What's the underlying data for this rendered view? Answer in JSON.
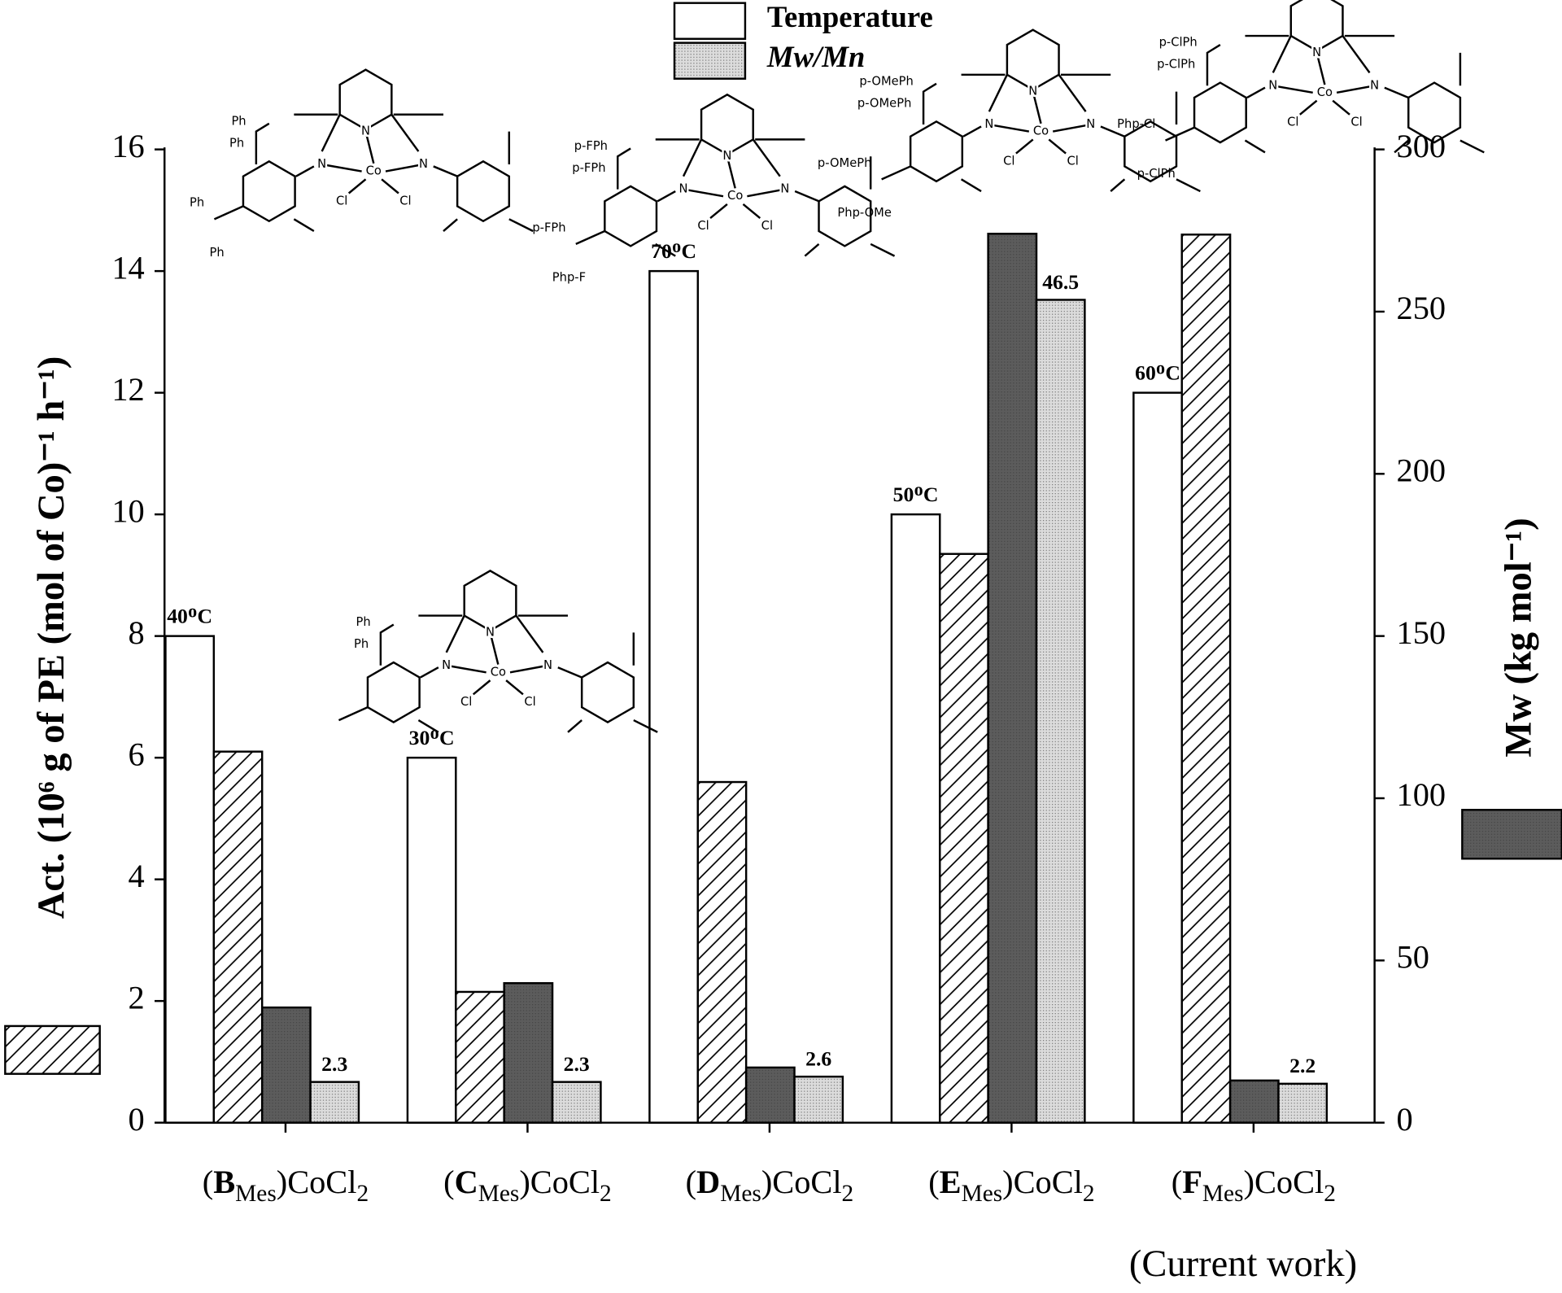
{
  "chart_data": {
    "type": "bar",
    "categories": [
      "(BMes)CoCl2",
      "(CMes)CoCl2",
      "(DMes)CoCl2",
      "(EMes)CoCl2",
      "(FMes)CoCl2"
    ],
    "ylabel": "Act. (10⁶ g of PE (mol of Co)⁻¹ h⁻¹)",
    "y2label": "Mw (kg mol⁻¹)",
    "ylim": [
      0,
      16
    ],
    "yticks": [
      0,
      2,
      4,
      6,
      8,
      10,
      12,
      14,
      16
    ],
    "y2lim": [
      0,
      300
    ],
    "y2ticks": [
      0,
      50,
      100,
      150,
      200,
      250,
      300
    ],
    "y3lim": [
      0,
      55
    ],
    "y4lim": [
      0,
      80
    ],
    "series": [
      {
        "name": "Temperature",
        "axis": "y4",
        "color": "#ffffff",
        "pattern": "none",
        "values": [
          40,
          30,
          70,
          50,
          60
        ],
        "value_labels": [
          "40ᴼC",
          "30ᴼC",
          "70ᴼC",
          "50ᴼC",
          "60ᴼC"
        ]
      },
      {
        "axis": "y",
        "color": "#ffffff",
        "pattern": "hatch",
        "values": [
          6.1,
          2.15,
          5.6,
          9.35,
          14.6
        ]
      },
      {
        "axis": "y2",
        "color": "#5c5c5c",
        "pattern": "dots",
        "values": [
          35.5,
          43,
          17,
          274,
          13
        ]
      },
      {
        "name": "Mw/Mn",
        "axis": "y3",
        "color": "#dcdcdc",
        "pattern": "dots",
        "values": [
          2.3,
          2.3,
          2.6,
          46.5,
          2.2
        ]
      }
    ],
    "annotation": "(Current work)",
    "structures": {
      "core_labels": [
        "N",
        "N",
        "N",
        "Co",
        "Cl",
        "Cl"
      ],
      "items": [
        {
          "substituents": [
            "Ph",
            "Ph",
            "Ph",
            "Ph"
          ]
        },
        {
          "substituents": [
            "Ph",
            "Ph"
          ]
        },
        {
          "substituents": [
            "p-FPh",
            "p-FPh",
            "p-FPh",
            "Php-F"
          ]
        },
        {
          "substituents": [
            "p-OMePh",
            "p-OMePh",
            "p-OMePh",
            "Php-OMe"
          ]
        },
        {
          "substituents": [
            "p-ClPh",
            "p-ClPh",
            "Php-Cl",
            "p-ClPh"
          ]
        }
      ]
    }
  }
}
